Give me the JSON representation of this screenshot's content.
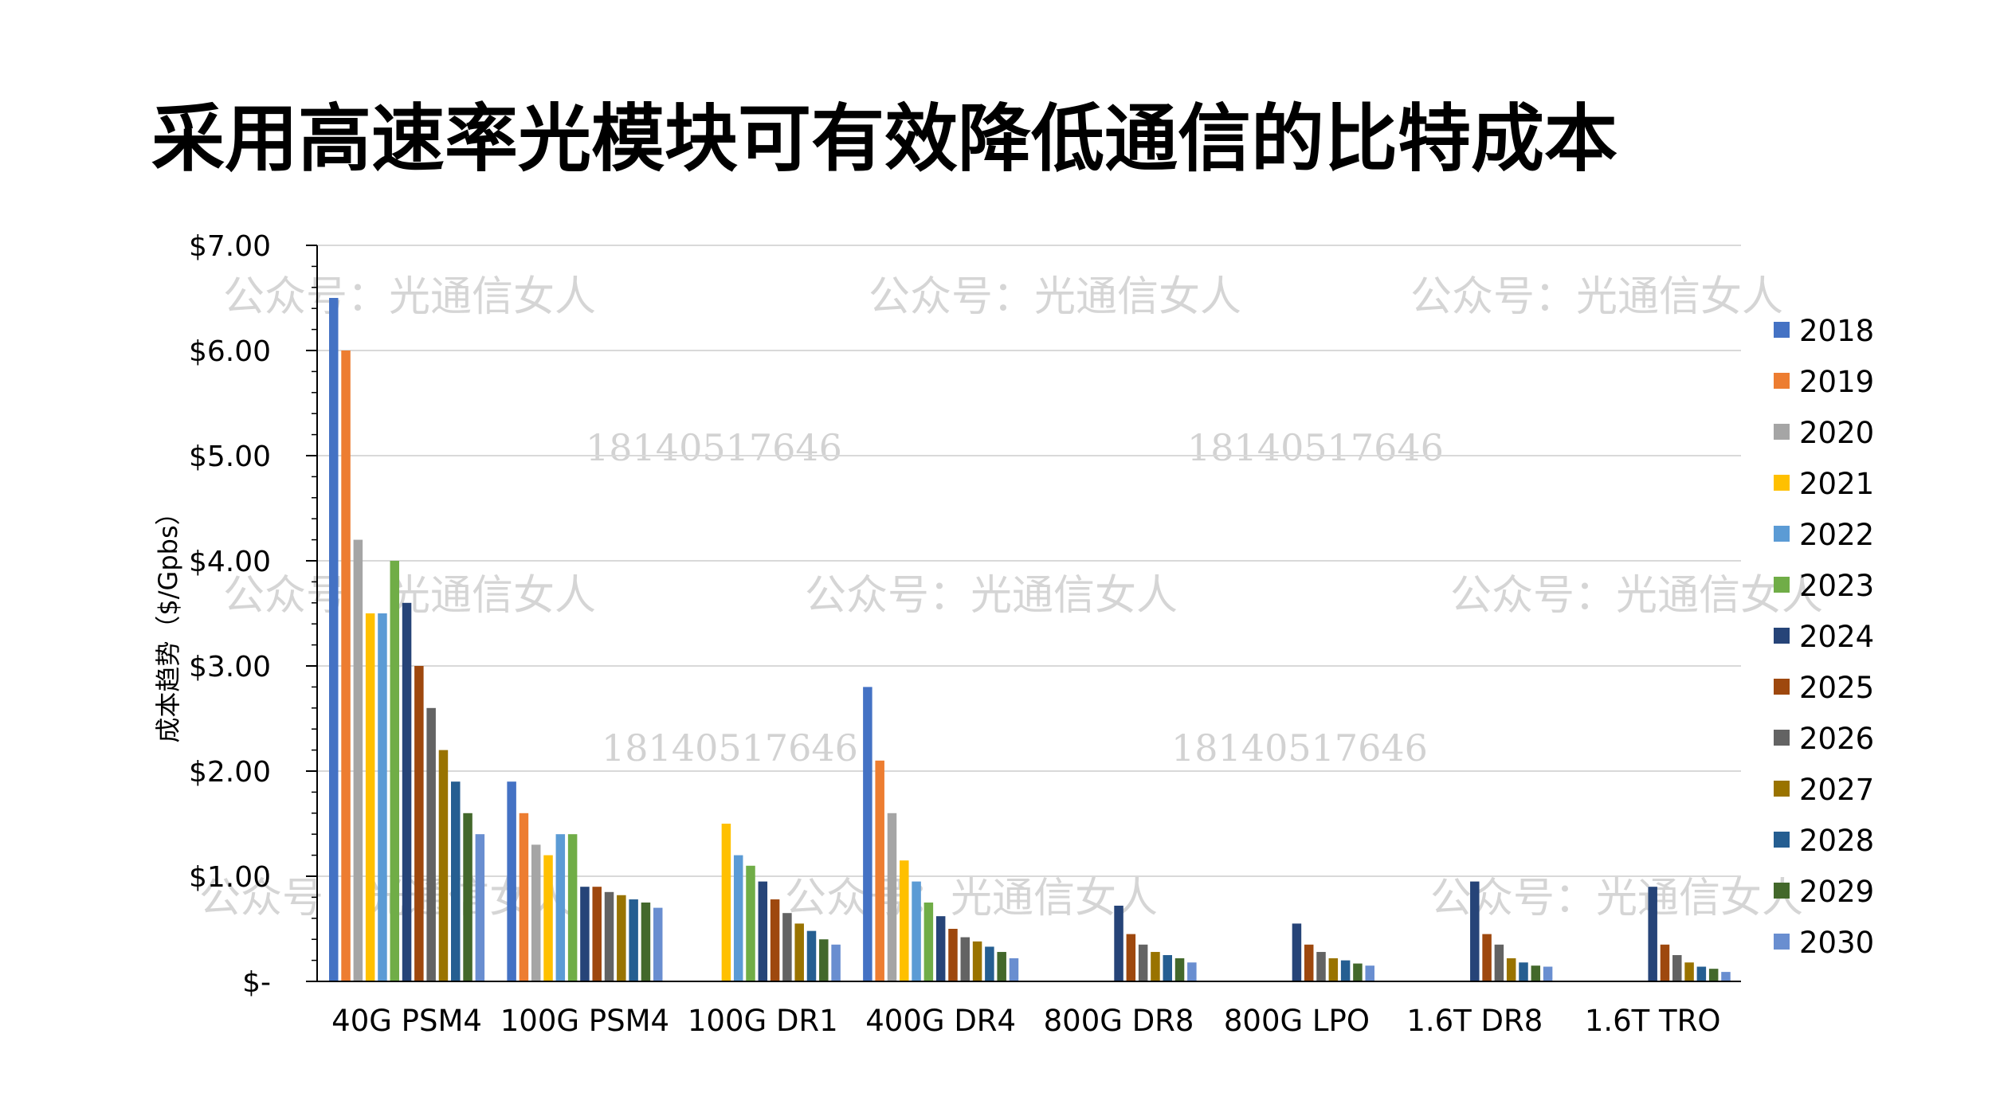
{
  "title": "采用高速率光模块可有效降低通信的比特成本",
  "watermark": {
    "text": "公众号：光通信女人",
    "number": "18140517646"
  },
  "chart_data": {
    "type": "bar",
    "title": "采用高速率光模块可有效降低通信的比特成本",
    "ylabel": "成本趋势（$/Gpbs）",
    "xlabel": "",
    "ylim": [
      0,
      7
    ],
    "yticks": [
      0,
      1,
      2,
      3,
      4,
      5,
      6,
      7
    ],
    "ytick_labels": [
      "$-",
      "$1.00",
      "$2.00",
      "$3.00",
      "$4.00",
      "$5.00",
      "$6.00",
      "$7.00"
    ],
    "grid": true,
    "legend_position": "right",
    "categories": [
      "40G PSM4",
      "100G PSM4",
      "100G DR1",
      "400G DR4",
      "800G DR8",
      "800G LPO",
      "1.6T DR8",
      "1.6T TRO"
    ],
    "series": [
      {
        "name": "2018",
        "color": "#4472C4",
        "values": [
          6.5,
          1.9,
          null,
          2.8,
          null,
          null,
          null,
          null
        ]
      },
      {
        "name": "2019",
        "color": "#ED7D31",
        "values": [
          6.0,
          1.6,
          null,
          2.1,
          null,
          null,
          null,
          null
        ]
      },
      {
        "name": "2020",
        "color": "#A5A5A5",
        "values": [
          4.2,
          1.3,
          null,
          1.6,
          null,
          null,
          null,
          null
        ]
      },
      {
        "name": "2021",
        "color": "#FFC000",
        "values": [
          3.5,
          1.2,
          1.5,
          1.15,
          null,
          null,
          null,
          null
        ]
      },
      {
        "name": "2022",
        "color": "#5B9BD5",
        "values": [
          3.5,
          1.4,
          1.2,
          0.95,
          null,
          null,
          null,
          null
        ]
      },
      {
        "name": "2023",
        "color": "#70AD47",
        "values": [
          4.0,
          1.4,
          1.1,
          0.75,
          null,
          null,
          null,
          null
        ]
      },
      {
        "name": "2024",
        "color": "#264478",
        "values": [
          3.6,
          0.9,
          0.95,
          0.62,
          0.72,
          0.55,
          0.95,
          0.9
        ]
      },
      {
        "name": "2025",
        "color": "#9E480E",
        "values": [
          3.0,
          0.9,
          0.78,
          0.5,
          0.45,
          0.35,
          0.45,
          0.35
        ]
      },
      {
        "name": "2026",
        "color": "#636363",
        "values": [
          2.6,
          0.85,
          0.65,
          0.42,
          0.35,
          0.28,
          0.35,
          0.25
        ]
      },
      {
        "name": "2027",
        "color": "#997300",
        "values": [
          2.2,
          0.82,
          0.55,
          0.38,
          0.28,
          0.22,
          0.22,
          0.18
        ]
      },
      {
        "name": "2028",
        "color": "#255E91",
        "values": [
          1.9,
          0.78,
          0.48,
          0.33,
          0.25,
          0.2,
          0.18,
          0.14
        ]
      },
      {
        "name": "2029",
        "color": "#43682B",
        "values": [
          1.6,
          0.75,
          0.4,
          0.28,
          0.22,
          0.17,
          0.15,
          0.12
        ]
      },
      {
        "name": "2030",
        "color": "#698ED0",
        "values": [
          1.4,
          0.7,
          0.35,
          0.22,
          0.18,
          0.15,
          0.14,
          0.09
        ]
      }
    ]
  }
}
